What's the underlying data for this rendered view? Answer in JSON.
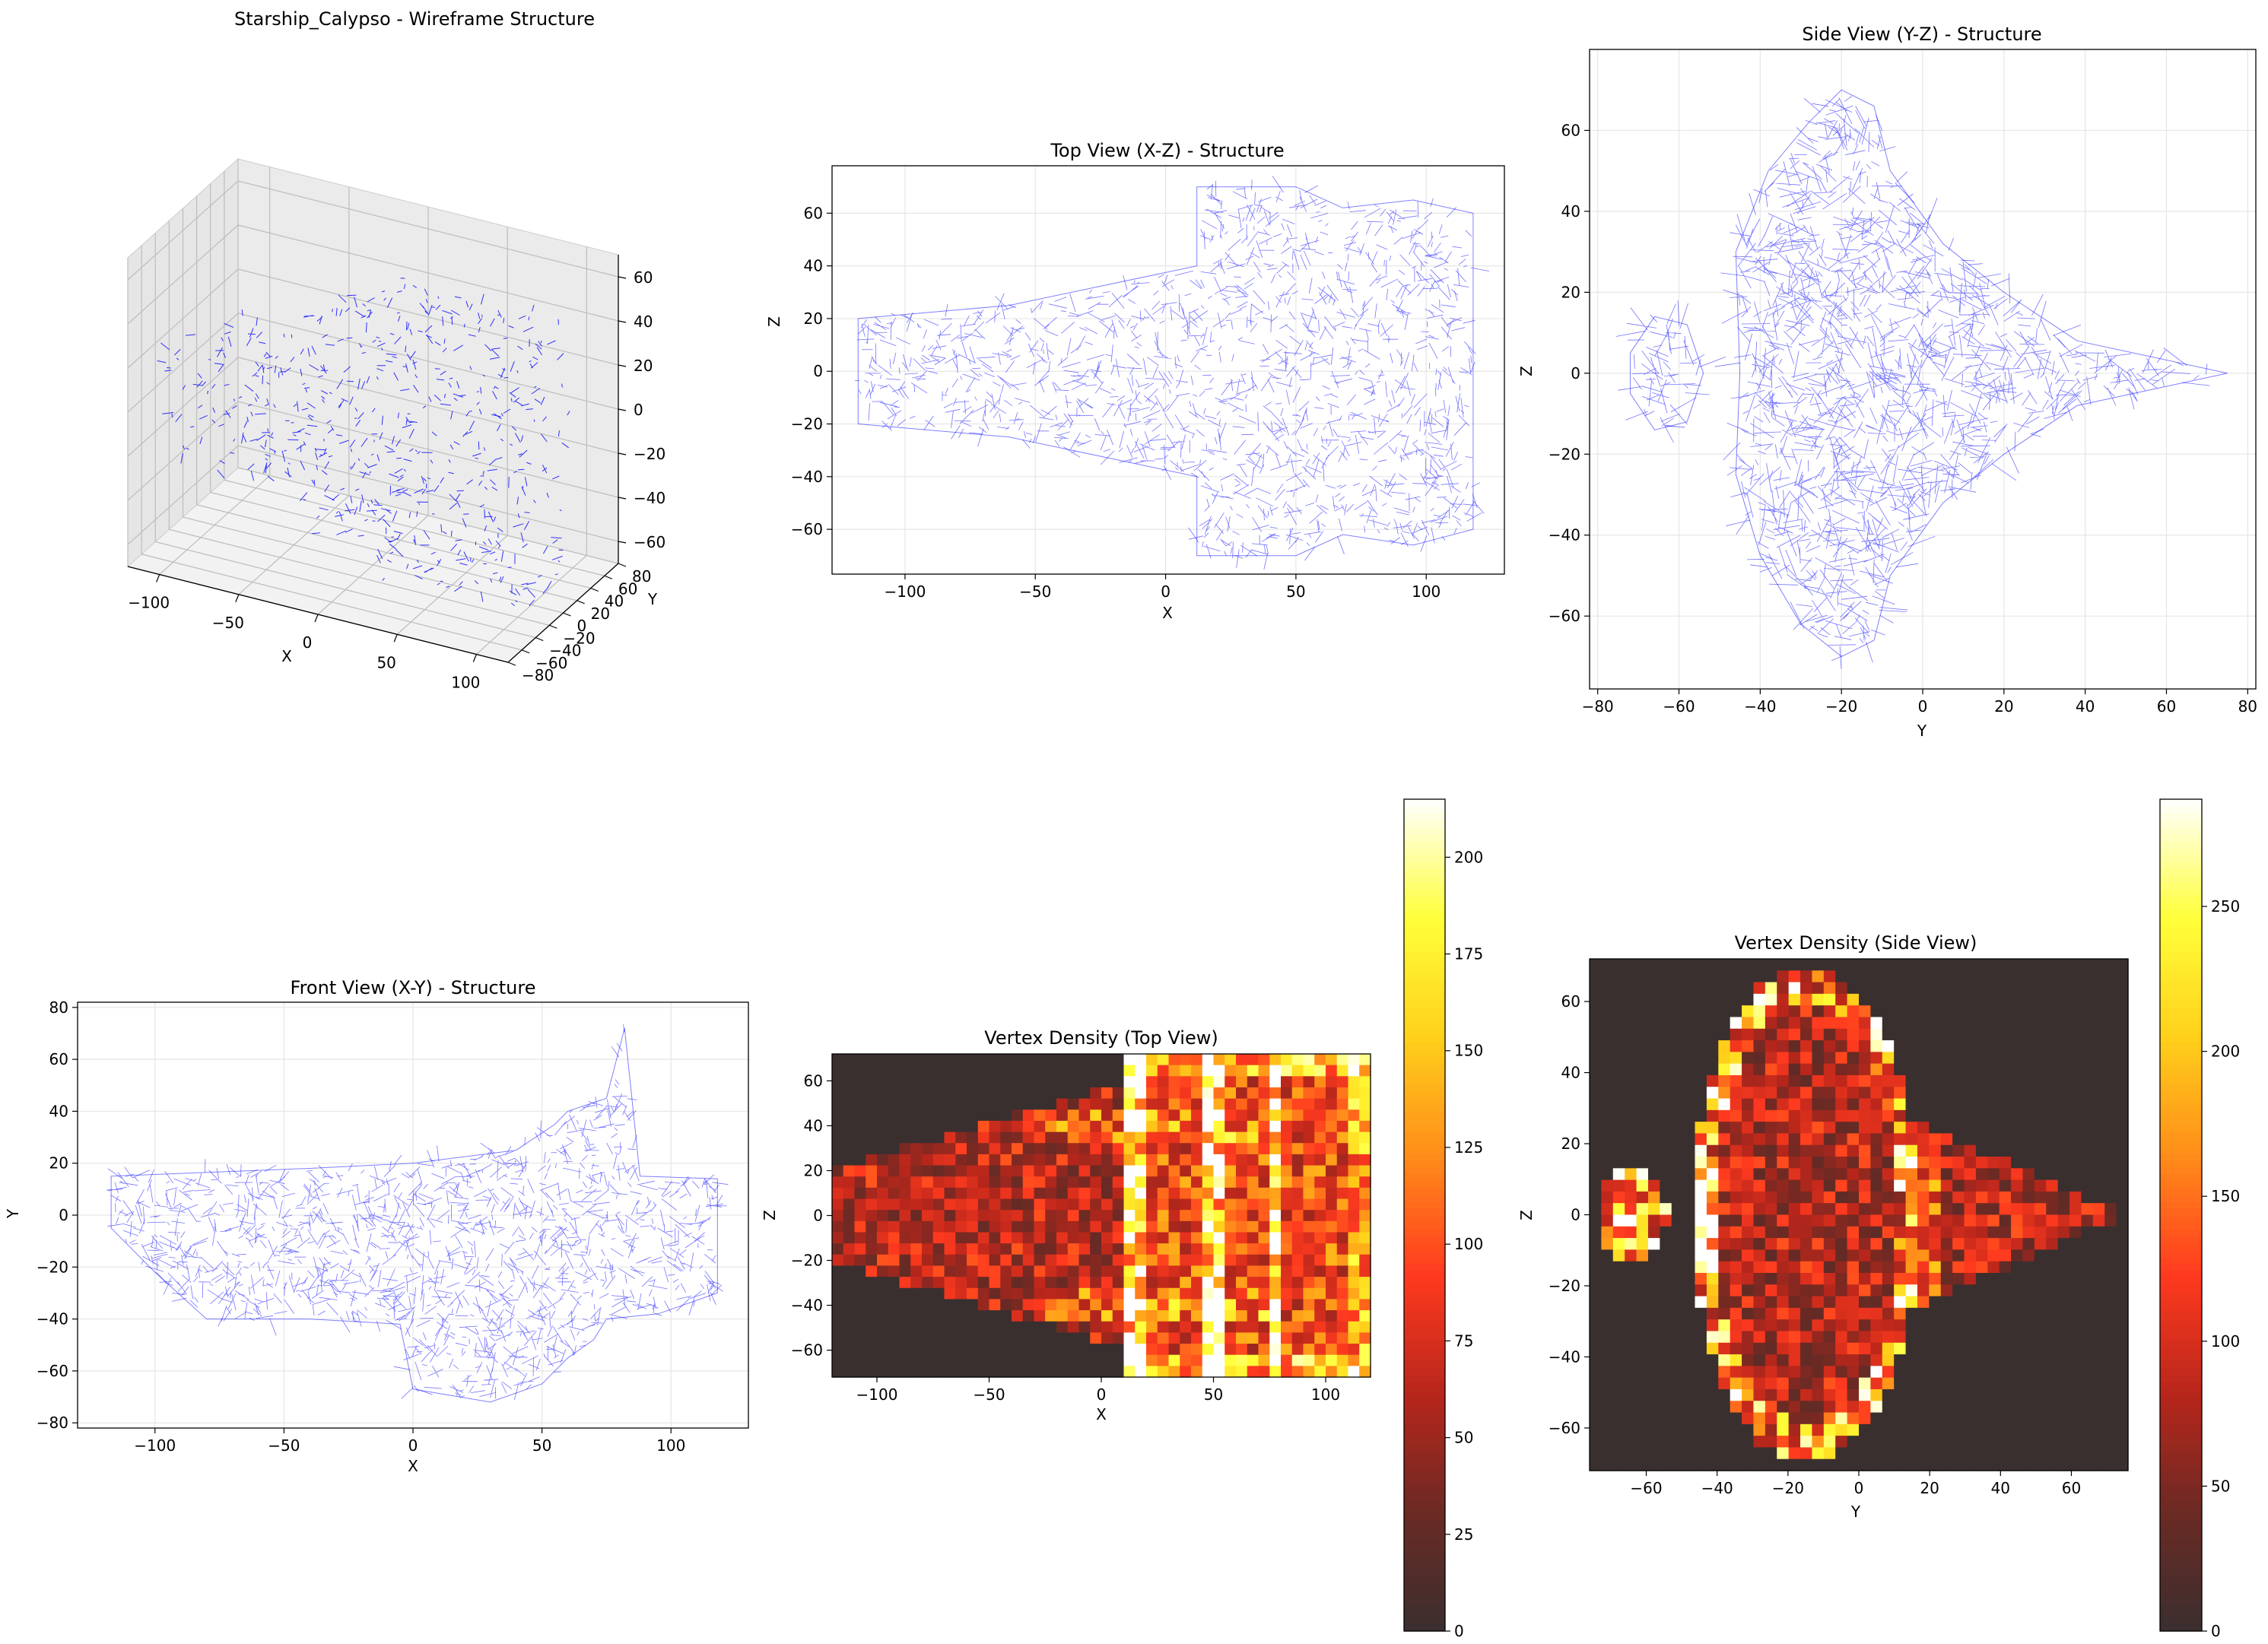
{
  "figure": {
    "background": "#ffffff",
    "wire_color": "#0000ff",
    "grid_color": "#e6e6e6",
    "heat_colormap": [
      "#3a2f2f",
      "#6b2a24",
      "#b8261b",
      "#ff3a1f",
      "#ff8c1a",
      "#ffd01a",
      "#ffff3a",
      "#ffffff"
    ]
  },
  "chart_data": [
    {
      "id": "wireframe3d",
      "type": "scatter",
      "title": "Starship_Calypso - Wireframe Structure",
      "projection": "3d",
      "xlabel": "X",
      "ylabel": "Y",
      "zlabel": "",
      "xlim": [
        -120,
        120
      ],
      "ylim": [
        -80,
        80
      ],
      "zlim": [
        -70,
        70
      ],
      "xticks": [
        -100,
        -50,
        0,
        50,
        100
      ],
      "yticks": [
        -80,
        -60,
        -40,
        -20,
        0,
        20,
        40,
        60,
        80
      ],
      "zticks": [
        -60,
        -40,
        -20,
        0,
        20,
        40,
        60
      ],
      "grid": true
    },
    {
      "id": "top",
      "type": "line",
      "title": "Top View (X-Z) - Structure",
      "xlabel": "X",
      "ylabel": "Z",
      "xlim": [
        -128,
        130
      ],
      "ylim": [
        -77,
        78
      ],
      "xticks": [
        -100,
        -50,
        0,
        50,
        100
      ],
      "yticks": [
        -60,
        -40,
        -20,
        0,
        20,
        40,
        60
      ],
      "grid": true,
      "outline": [
        [
          -118,
          20
        ],
        [
          -60,
          25
        ],
        [
          12,
          40
        ],
        [
          12,
          70
        ],
        [
          50,
          70
        ],
        [
          68,
          62
        ],
        [
          95,
          65
        ],
        [
          118,
          60
        ],
        [
          118,
          -60
        ],
        [
          95,
          -66
        ],
        [
          68,
          -62
        ],
        [
          50,
          -70
        ],
        [
          12,
          -70
        ],
        [
          12,
          -40
        ],
        [
          -60,
          -25
        ],
        [
          -118,
          -20
        ]
      ]
    },
    {
      "id": "side",
      "type": "line",
      "title": "Side View (Y-Z) - Structure",
      "xlabel": "Y",
      "ylabel": "Z",
      "xlim": [
        -82,
        82
      ],
      "ylim": [
        -78,
        80
      ],
      "xticks": [
        -80,
        -60,
        -40,
        -20,
        0,
        20,
        40,
        60,
        80
      ],
      "yticks": [
        -60,
        -40,
        -20,
        0,
        20,
        40,
        60
      ],
      "grid": true,
      "outline": [
        [
          -45,
          0
        ],
        [
          -46,
          30
        ],
        [
          -38,
          50
        ],
        [
          -28,
          62
        ],
        [
          -20,
          70
        ],
        [
          -12,
          66
        ],
        [
          -8,
          50
        ],
        [
          5,
          32
        ],
        [
          20,
          20
        ],
        [
          38,
          8
        ],
        [
          75,
          0
        ],
        [
          38,
          -8
        ],
        [
          20,
          -20
        ],
        [
          5,
          -32
        ],
        [
          -8,
          -50
        ],
        [
          -12,
          -66
        ],
        [
          -20,
          -70
        ],
        [
          -30,
          -62
        ],
        [
          -40,
          -45
        ],
        [
          -46,
          -25
        ]
      ],
      "pod": [
        [
          -72,
          5
        ],
        [
          -66,
          14
        ],
        [
          -58,
          12
        ],
        [
          -54,
          0
        ],
        [
          -58,
          -12
        ],
        [
          -66,
          -14
        ],
        [
          -72,
          -5
        ]
      ]
    },
    {
      "id": "front",
      "type": "line",
      "title": "Front View (X-Y) - Structure",
      "xlabel": "X",
      "ylabel": "Y",
      "xlim": [
        -130,
        130
      ],
      "ylim": [
        -82,
        82
      ],
      "xticks": [
        -100,
        -50,
        0,
        50,
        100
      ],
      "yticks": [
        -80,
        -60,
        -40,
        -20,
        0,
        20,
        40,
        60,
        80
      ],
      "grid": true,
      "outline": [
        [
          -117,
          15
        ],
        [
          -40,
          18
        ],
        [
          0,
          20
        ],
        [
          40,
          25
        ],
        [
          55,
          35
        ],
        [
          60,
          40
        ],
        [
          75,
          45
        ],
        [
          82,
          72
        ],
        [
          88,
          15
        ],
        [
          118,
          14
        ],
        [
          118,
          -30
        ],
        [
          95,
          -38
        ],
        [
          75,
          -40
        ],
        [
          70,
          -48
        ],
        [
          60,
          -55
        ],
        [
          50,
          -65
        ],
        [
          30,
          -72
        ],
        [
          0,
          -67
        ],
        [
          -5,
          -42
        ],
        [
          -40,
          -40
        ],
        [
          -80,
          -40
        ],
        [
          -100,
          -22
        ],
        [
          -117,
          -5
        ]
      ]
    },
    {
      "id": "density_top",
      "type": "heatmap",
      "title": "Vertex Density (Top View)",
      "xlabel": "X",
      "ylabel": "Z",
      "xlim": [
        -120,
        120
      ],
      "ylim": [
        -72,
        72
      ],
      "xticks": [
        -100,
        -50,
        0,
        50,
        100
      ],
      "yticks": [
        -60,
        -40,
        -20,
        0,
        20,
        40,
        60
      ],
      "bins": [
        48,
        29
      ],
      "colorbar_max": 215,
      "colorbar_ticks": [
        0,
        25,
        50,
        75,
        100,
        125,
        150,
        175,
        200
      ]
    },
    {
      "id": "density_side",
      "type": "heatmap",
      "title": "Vertex Density (Side View)",
      "xlabel": "Y",
      "ylabel": "Z",
      "xlim": [
        -76,
        76
      ],
      "ylim": [
        -72,
        72
      ],
      "xticks": [
        -60,
        -40,
        -20,
        0,
        20,
        40,
        60
      ],
      "yticks": [
        -60,
        -40,
        -20,
        0,
        20,
        40,
        60
      ],
      "bins": [
        46,
        44
      ],
      "colorbar_max": 287,
      "colorbar_ticks": [
        0,
        50,
        100,
        150,
        200,
        250
      ]
    }
  ]
}
